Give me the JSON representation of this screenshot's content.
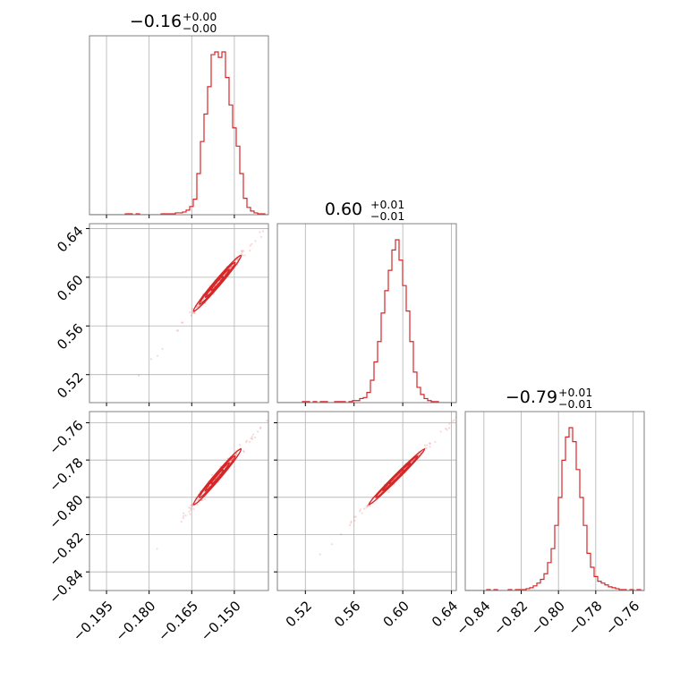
{
  "chart_data": {
    "type": "corner",
    "color": "#d62728",
    "frame_color": "#808080",
    "grid": true,
    "parameters": [
      {
        "title": {
          "main": "−0.16",
          "plus": "+0.00",
          "minus": "−0.00"
        },
        "range": [
          -0.201,
          -0.138
        ],
        "ticks": [
          -0.195,
          -0.18,
          -0.165,
          -0.15
        ],
        "tick_labels": [
          "−0.195",
          "−0.180",
          "−0.165",
          "−0.150"
        ],
        "histogram": {
          "start": -0.201,
          "bin_width": 0.00126,
          "counts": [
            0,
            0,
            0,
            0,
            0,
            0,
            0,
            0,
            0,
            0,
            1,
            1,
            0,
            1,
            0,
            0,
            0,
            0,
            0,
            0,
            1,
            1,
            1,
            1,
            2,
            2,
            3,
            5,
            9,
            17,
            45,
            80,
            110,
            140,
            175,
            178,
            172,
            178,
            150,
            120,
            95,
            75,
            45,
            18,
            8,
            4,
            2,
            1,
            1,
            0
          ]
        }
      },
      {
        "title": {
          "main": "0.60",
          "plus": "+0.01",
          "minus": "−0.01"
        },
        "range": [
          0.497,
          0.644
        ],
        "ticks": [
          0.52,
          0.56,
          0.6,
          0.64
        ],
        "tick_labels": [
          "0.52",
          "0.56",
          "0.60",
          "0.64"
        ],
        "histogram": {
          "start": 0.497,
          "bin_width": 0.00294,
          "counts": [
            0,
            0,
            0,
            0,
            0,
            0,
            0,
            1,
            1,
            0,
            1,
            0,
            1,
            1,
            0,
            0,
            1,
            1,
            1,
            0,
            1,
            2,
            2,
            4,
            5,
            10,
            22,
            40,
            60,
            88,
            110,
            130,
            150,
            160,
            140,
            115,
            90,
            60,
            30,
            15,
            8,
            4,
            2,
            1,
            1,
            0,
            0,
            0,
            0,
            0
          ]
        }
      },
      {
        "title": {
          "main": "−0.79",
          "plus": "+0.01",
          "minus": "−0.01"
        },
        "range": [
          -0.85,
          -0.754
        ],
        "ticks": [
          -0.84,
          -0.82,
          -0.8,
          -0.78,
          -0.76
        ],
        "tick_labels": [
          "−0.84",
          "−0.82",
          "−0.80",
          "−0.78",
          "−0.76"
        ],
        "histogram": {
          "start": -0.85,
          "bin_width": 0.00192,
          "counts": [
            0,
            0,
            0,
            0,
            0,
            0,
            1,
            0,
            1,
            0,
            0,
            0,
            1,
            0,
            1,
            1,
            1,
            2,
            3,
            5,
            8,
            12,
            18,
            30,
            45,
            70,
            100,
            140,
            165,
            175,
            160,
            130,
            100,
            70,
            40,
            25,
            15,
            10,
            8,
            6,
            4,
            3,
            2,
            1,
            1,
            0,
            1,
            0,
            1,
            0
          ]
        }
      }
    ],
    "correlations": [
      {
        "pair": [
          0,
          1
        ],
        "center": [
          -0.156,
          0.595
        ],
        "sigma": [
          0.0042,
          0.0115
        ],
        "rho": 0.985
      },
      {
        "pair": [
          0,
          2
        ],
        "center": [
          -0.156,
          -0.789
        ],
        "sigma": [
          0.0042,
          0.0075
        ],
        "rho": 0.985
      },
      {
        "pair": [
          1,
          2
        ],
        "center": [
          0.595,
          -0.789
        ],
        "sigma": [
          0.0115,
          0.0075
        ],
        "rho": 0.992
      }
    ],
    "contour_levels": [
      0.5,
      1.0,
      1.5,
      2.0
    ]
  }
}
